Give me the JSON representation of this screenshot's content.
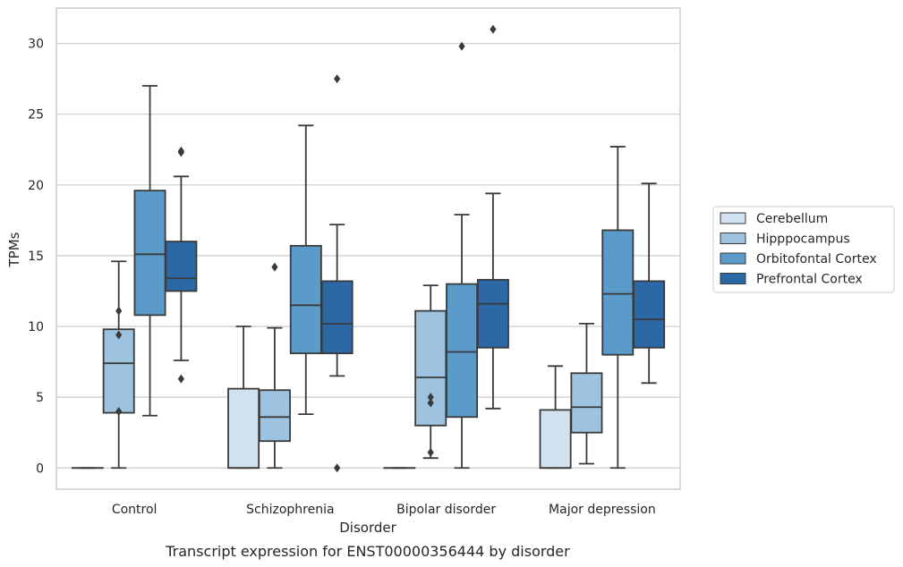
{
  "chart_data": {
    "type": "box",
    "title": "",
    "xlabel": "Disorder",
    "ylabel": "TPMs",
    "caption": "Transcript expression for ENST00000356444 by disorder",
    "ylim": [
      -1.5,
      32.5
    ],
    "yticks": [
      0,
      5,
      10,
      15,
      20,
      25,
      30
    ],
    "grid": "horizontal",
    "legend_position": "right",
    "categories": [
      "Control",
      "Schizophrenia",
      "Bipolar disorder",
      "Major depression"
    ],
    "series": [
      {
        "name": "Cerebellum",
        "color": "#d1e1f0",
        "boxes": [
          {
            "category": "Control",
            "whislo": 0,
            "q1": 0,
            "med": 0,
            "q3": 0,
            "whishi": 0,
            "fliers": []
          },
          {
            "category": "Schizophrenia",
            "whislo": 0,
            "q1": 0,
            "med": 0,
            "q3": 5.6,
            "whishi": 10.0,
            "fliers": []
          },
          {
            "category": "Bipolar disorder",
            "whislo": 0,
            "q1": 0,
            "med": 0,
            "q3": 0,
            "whishi": 0,
            "fliers": []
          },
          {
            "category": "Major depression",
            "whislo": 0,
            "q1": 0,
            "med": 0,
            "q3": 4.1,
            "whishi": 7.2,
            "fliers": []
          }
        ]
      },
      {
        "name": "Hipppocampus",
        "color": "#9dc3e0",
        "boxes": [
          {
            "category": "Control",
            "whislo": 0,
            "q1": 3.9,
            "med": 7.4,
            "q3": 9.8,
            "whishi": 14.6,
            "fliers": [
              4.0,
              9.4,
              11.1
            ]
          },
          {
            "category": "Schizophrenia",
            "whislo": 0,
            "q1": 1.9,
            "med": 3.6,
            "q3": 5.5,
            "whishi": 9.9,
            "fliers": [
              14.2
            ]
          },
          {
            "category": "Bipolar disorder",
            "whislo": 0.7,
            "q1": 3.0,
            "med": 6.4,
            "q3": 11.1,
            "whishi": 12.9,
            "fliers": [
              1.1,
              4.6,
              5.0
            ]
          },
          {
            "category": "Major depression",
            "whislo": 0.3,
            "q1": 2.5,
            "med": 4.3,
            "q3": 6.7,
            "whishi": 10.2,
            "fliers": []
          }
        ]
      },
      {
        "name": "Orbitofontal Cortex",
        "color": "#5a9bca",
        "boxes": [
          {
            "category": "Control",
            "whislo": 3.7,
            "q1": 10.8,
            "med": 15.1,
            "q3": 19.6,
            "whishi": 27.0,
            "fliers": []
          },
          {
            "category": "Schizophrenia",
            "whislo": 3.8,
            "q1": 8.1,
            "med": 11.5,
            "q3": 15.7,
            "whishi": 24.2,
            "fliers": []
          },
          {
            "category": "Bipolar disorder",
            "whislo": 0,
            "q1": 3.6,
            "med": 8.2,
            "q3": 13.0,
            "whishi": 17.9,
            "fliers": [
              29.8
            ]
          },
          {
            "category": "Major depression",
            "whislo": 0,
            "q1": 8.0,
            "med": 12.3,
            "q3": 16.8,
            "whishi": 22.7,
            "fliers": []
          }
        ]
      },
      {
        "name": "Prefrontal Cortex",
        "color": "#2c67a6",
        "boxes": [
          {
            "category": "Control",
            "whislo": 7.6,
            "q1": 12.5,
            "med": 13.4,
            "q3": 16.0,
            "whishi": 20.6,
            "fliers": [
              6.3,
              22.3,
              22.4
            ]
          },
          {
            "category": "Schizophrenia",
            "whislo": 6.5,
            "q1": 8.1,
            "med": 10.2,
            "q3": 13.2,
            "whishi": 17.2,
            "fliers": [
              0,
              27.5
            ]
          },
          {
            "category": "Bipolar disorder",
            "whislo": 4.2,
            "q1": 8.5,
            "med": 11.6,
            "q3": 13.3,
            "whishi": 19.4,
            "fliers": [
              31.0
            ]
          },
          {
            "category": "Major depression",
            "whislo": 6.0,
            "q1": 8.5,
            "med": 10.5,
            "q3": 13.2,
            "whishi": 20.1,
            "fliers": []
          }
        ]
      }
    ]
  }
}
